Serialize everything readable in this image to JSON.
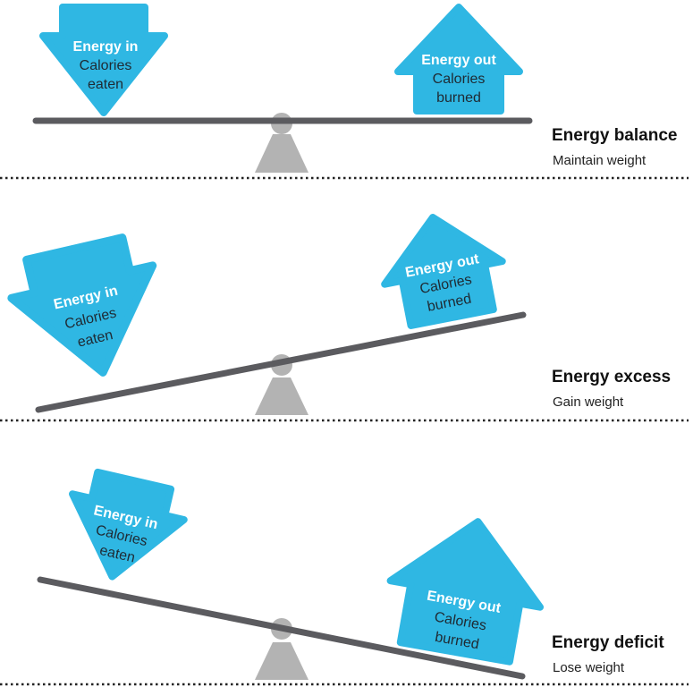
{
  "colors": {
    "arrow": "#2fb7e3",
    "beam": "#5b5b5f",
    "fulcrum": "#b3b3b3",
    "divider": "#222222"
  },
  "panels": [
    {
      "title": "Energy balance",
      "subtitle": "Maintain weight",
      "energy_in": {
        "title": "Energy in",
        "line1": "Calories",
        "line2": "eaten"
      },
      "energy_out": {
        "title": "Energy out",
        "line1": "Calories",
        "line2": "burned"
      }
    },
    {
      "title": "Energy excess",
      "subtitle": "Gain weight",
      "energy_in": {
        "title": "Energy in",
        "line1": "Calories",
        "line2": "eaten"
      },
      "energy_out": {
        "title": "Energy out",
        "line1": "Calories",
        "line2": "burned"
      }
    },
    {
      "title": "Energy deficit",
      "subtitle": "Lose weight",
      "energy_in": {
        "title": "Energy in",
        "line1": "Calories",
        "line2": "eaten"
      },
      "energy_out": {
        "title": "Energy out",
        "line1": "Calories",
        "line2": "burned"
      }
    }
  ]
}
